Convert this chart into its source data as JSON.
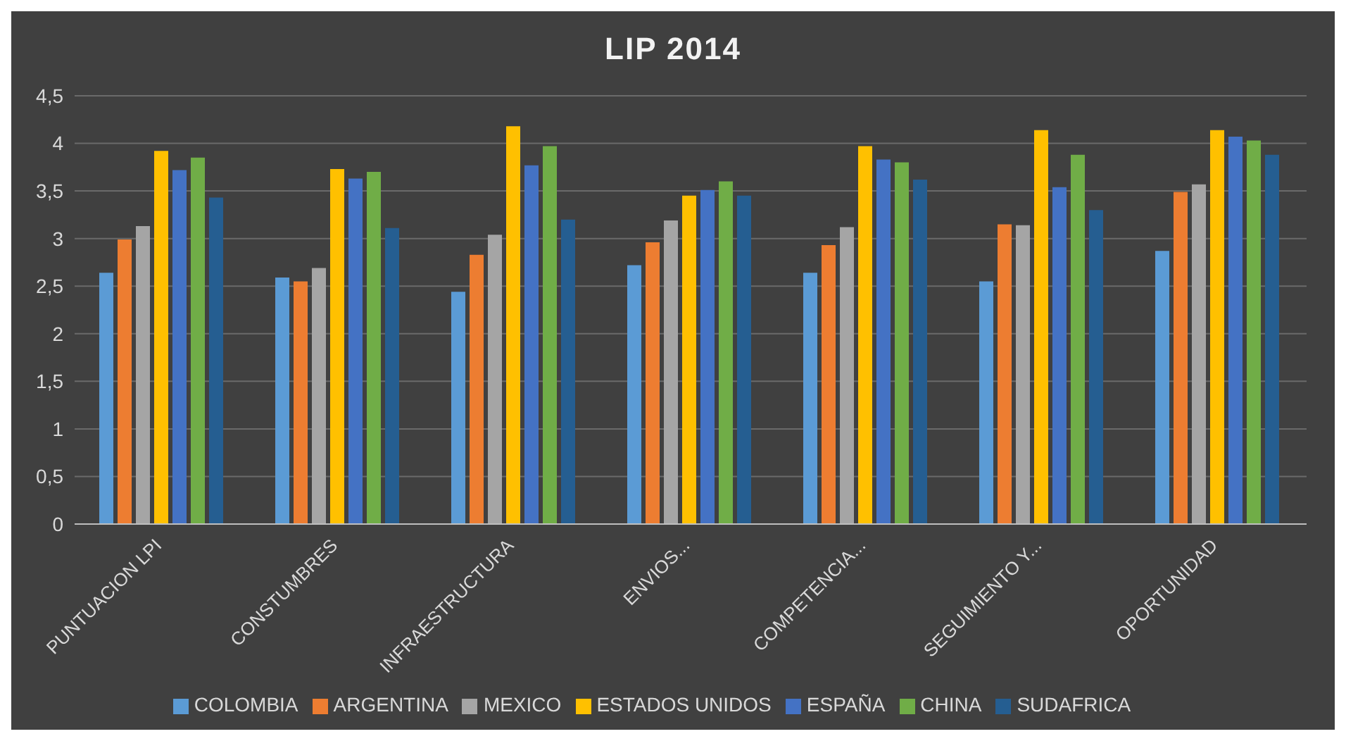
{
  "chart_data": {
    "type": "bar",
    "title": "LIP 2014",
    "categories": [
      "PUNTUACION LPI",
      "CONSTUMBRES",
      "INFRAESTRUCTURA",
      "ENVIOS...",
      "COMPETENCIA...",
      "SEGUIMIENTO Y...",
      "OPORTUNIDAD"
    ],
    "series": [
      {
        "name": "COLOMBIA",
        "color": "#5b9bd5",
        "values": [
          2.64,
          2.59,
          2.44,
          2.72,
          2.64,
          2.55,
          2.87
        ]
      },
      {
        "name": "ARGENTINA",
        "color": "#ed7d31",
        "values": [
          2.99,
          2.55,
          2.83,
          2.96,
          2.93,
          3.15,
          3.49
        ]
      },
      {
        "name": "MEXICO",
        "color": "#a5a5a5",
        "values": [
          3.13,
          2.69,
          3.04,
          3.19,
          3.12,
          3.14,
          3.57
        ]
      },
      {
        "name": "ESTADOS UNIDOS",
        "color": "#ffc000",
        "values": [
          3.92,
          3.73,
          4.18,
          3.45,
          3.97,
          4.14,
          4.14
        ]
      },
      {
        "name": "ESPAÑA",
        "color": "#4472c4",
        "values": [
          3.72,
          3.63,
          3.77,
          3.51,
          3.83,
          3.54,
          4.07
        ]
      },
      {
        "name": "CHINA",
        "color": "#70ad47",
        "values": [
          3.85,
          3.7,
          3.97,
          3.6,
          3.8,
          3.88,
          4.03
        ]
      },
      {
        "name": "SUDAFRICA",
        "color": "#255e91",
        "values": [
          3.43,
          3.11,
          3.2,
          3.45,
          3.62,
          3.3,
          3.88
        ]
      }
    ],
    "ylim": [
      0,
      4.5
    ],
    "yticks": [
      0,
      {
        "value": 0.5,
        "label": "0,5"
      },
      1,
      {
        "value": 1.5,
        "label": "1,5"
      },
      2,
      {
        "value": 2.5,
        "label": "2,5"
      },
      3,
      {
        "value": 3.5,
        "label": "3,5"
      },
      4,
      {
        "value": 4.5,
        "label": "4,5"
      }
    ],
    "grid": "y",
    "legend": "bottom"
  }
}
